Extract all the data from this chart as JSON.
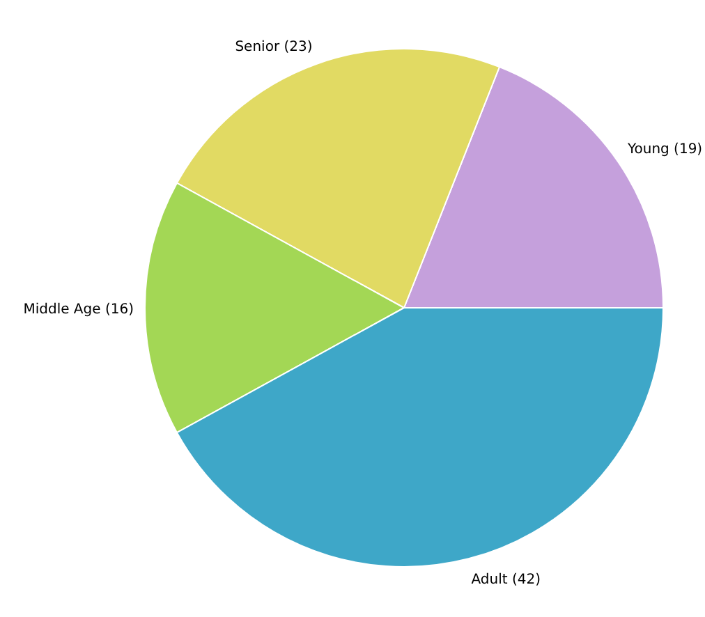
{
  "chart_data": {
    "type": "pie",
    "categories": [
      "Young",
      "Senior",
      "Middle Age",
      "Adult"
    ],
    "values": [
      19,
      23,
      16,
      42
    ],
    "value_labels": [
      "(19)",
      "(23)",
      "(16)",
      "(42)"
    ],
    "colors": [
      "#c5a0dc",
      "#e1da63",
      "#a3d755",
      "#3ea7c8"
    ]
  }
}
